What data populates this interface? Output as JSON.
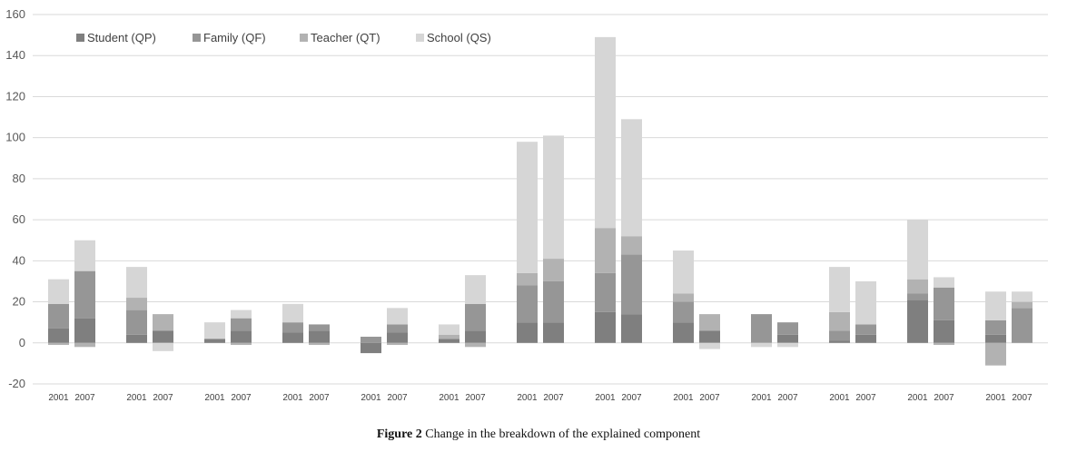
{
  "chart_data": {
    "type": "bar",
    "stacked": true,
    "categories": [
      "2001",
      "2007",
      "2001",
      "2007",
      "2001",
      "2007",
      "2001",
      "2007",
      "2001",
      "2007",
      "2001",
      "2007",
      "2001",
      "2007",
      "2001",
      "2007",
      "2001",
      "2007",
      "2001",
      "2007",
      "2001",
      "2007",
      "2001",
      "2007",
      "2001",
      "2007"
    ],
    "series": [
      {
        "name": "Student (QP)",
        "color": "#7f7f7f",
        "values": [
          7,
          12,
          4,
          6,
          2,
          6,
          5,
          6,
          -5,
          5,
          2,
          6,
          10,
          10,
          15,
          14,
          10,
          6,
          0,
          4,
          1,
          4,
          21,
          11,
          4,
          0
        ]
      },
      {
        "name": "Family (QF)",
        "color": "#969696",
        "values": [
          12,
          23,
          12,
          0,
          0,
          6,
          5,
          3,
          3,
          4,
          0,
          13,
          18,
          20,
          19,
          29,
          10,
          0,
          14,
          6,
          5,
          5,
          3,
          16,
          7,
          17
        ]
      },
      {
        "name": "Teacher (QT)",
        "color": "#b2b2b2",
        "values": [
          -1,
          -2,
          6,
          8,
          0,
          -1,
          0,
          -1,
          0,
          -1,
          2,
          -2,
          6,
          11,
          22,
          9,
          4,
          8,
          0,
          0,
          9,
          0,
          7,
          -1,
          -11,
          3
        ]
      },
      {
        "name": "School (QS)",
        "color": "#d6d6d6",
        "values": [
          12,
          15,
          15,
          -4,
          8,
          4,
          9,
          0,
          0,
          8,
          5,
          14,
          64,
          60,
          93,
          57,
          21,
          -3,
          -2,
          -2,
          22,
          21,
          29,
          5,
          14,
          5
        ]
      }
    ],
    "ylim": [
      -20,
      160
    ],
    "yticks": [
      -20,
      0,
      20,
      40,
      60,
      80,
      100,
      120,
      140,
      160
    ],
    "grid": true,
    "legend_position": "top-left",
    "title": "",
    "xlabel": "",
    "ylabel": ""
  },
  "caption": {
    "figure_label": "Figure 2",
    "text": "Change in the breakdown of the explained component"
  }
}
